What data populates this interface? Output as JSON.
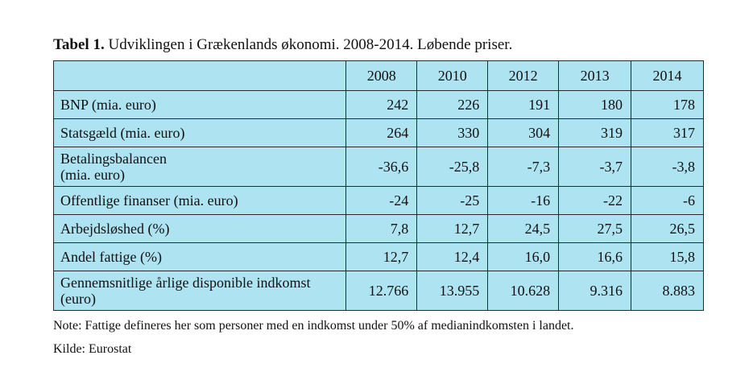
{
  "caption": {
    "bold": "Tabel 1.",
    "text": " Udviklingen i Grækenlands økonomi. 2008-2014. Løbende priser."
  },
  "table": {
    "years": [
      "2008",
      "2010",
      "2012",
      "2013",
      "2014"
    ],
    "rows": [
      {
        "label": "BNP (mia. euro)",
        "values": [
          "242",
          "226",
          "191",
          "180",
          "178"
        ]
      },
      {
        "label": "Statsgæld (mia. euro)",
        "values": [
          "264",
          "330",
          "304",
          "319",
          "317"
        ]
      },
      {
        "label": "Betalingsbalancen",
        "label2": "(mia. euro)",
        "values": [
          "-36,6",
          "-25,8",
          "-7,3",
          "-3,7",
          "-3,8"
        ]
      },
      {
        "label": "Offentlige finanser (mia. euro)",
        "values": [
          "-24",
          "-25",
          "-16",
          "-22",
          "-6"
        ]
      },
      {
        "label": "Arbejdsløshed (%)",
        "values": [
          "7,8",
          "12,7",
          "24,5",
          "27,5",
          "26,5"
        ]
      },
      {
        "label": "Andel fattige (%)",
        "values": [
          "12,7",
          "12,4",
          "16,0",
          "16,6",
          "15,8"
        ]
      },
      {
        "label": "Gennemsnitlige årlige disponible indkomst",
        "label2": "(euro)",
        "values": [
          "12.766",
          "13.955",
          "10.628",
          "9.316",
          "8.883"
        ]
      }
    ]
  },
  "notes": {
    "note": "Note: Fattige defineres her som personer med en indkomst under 50% af medianindkomsten i landet.",
    "source": "Kilde: Eurostat"
  }
}
